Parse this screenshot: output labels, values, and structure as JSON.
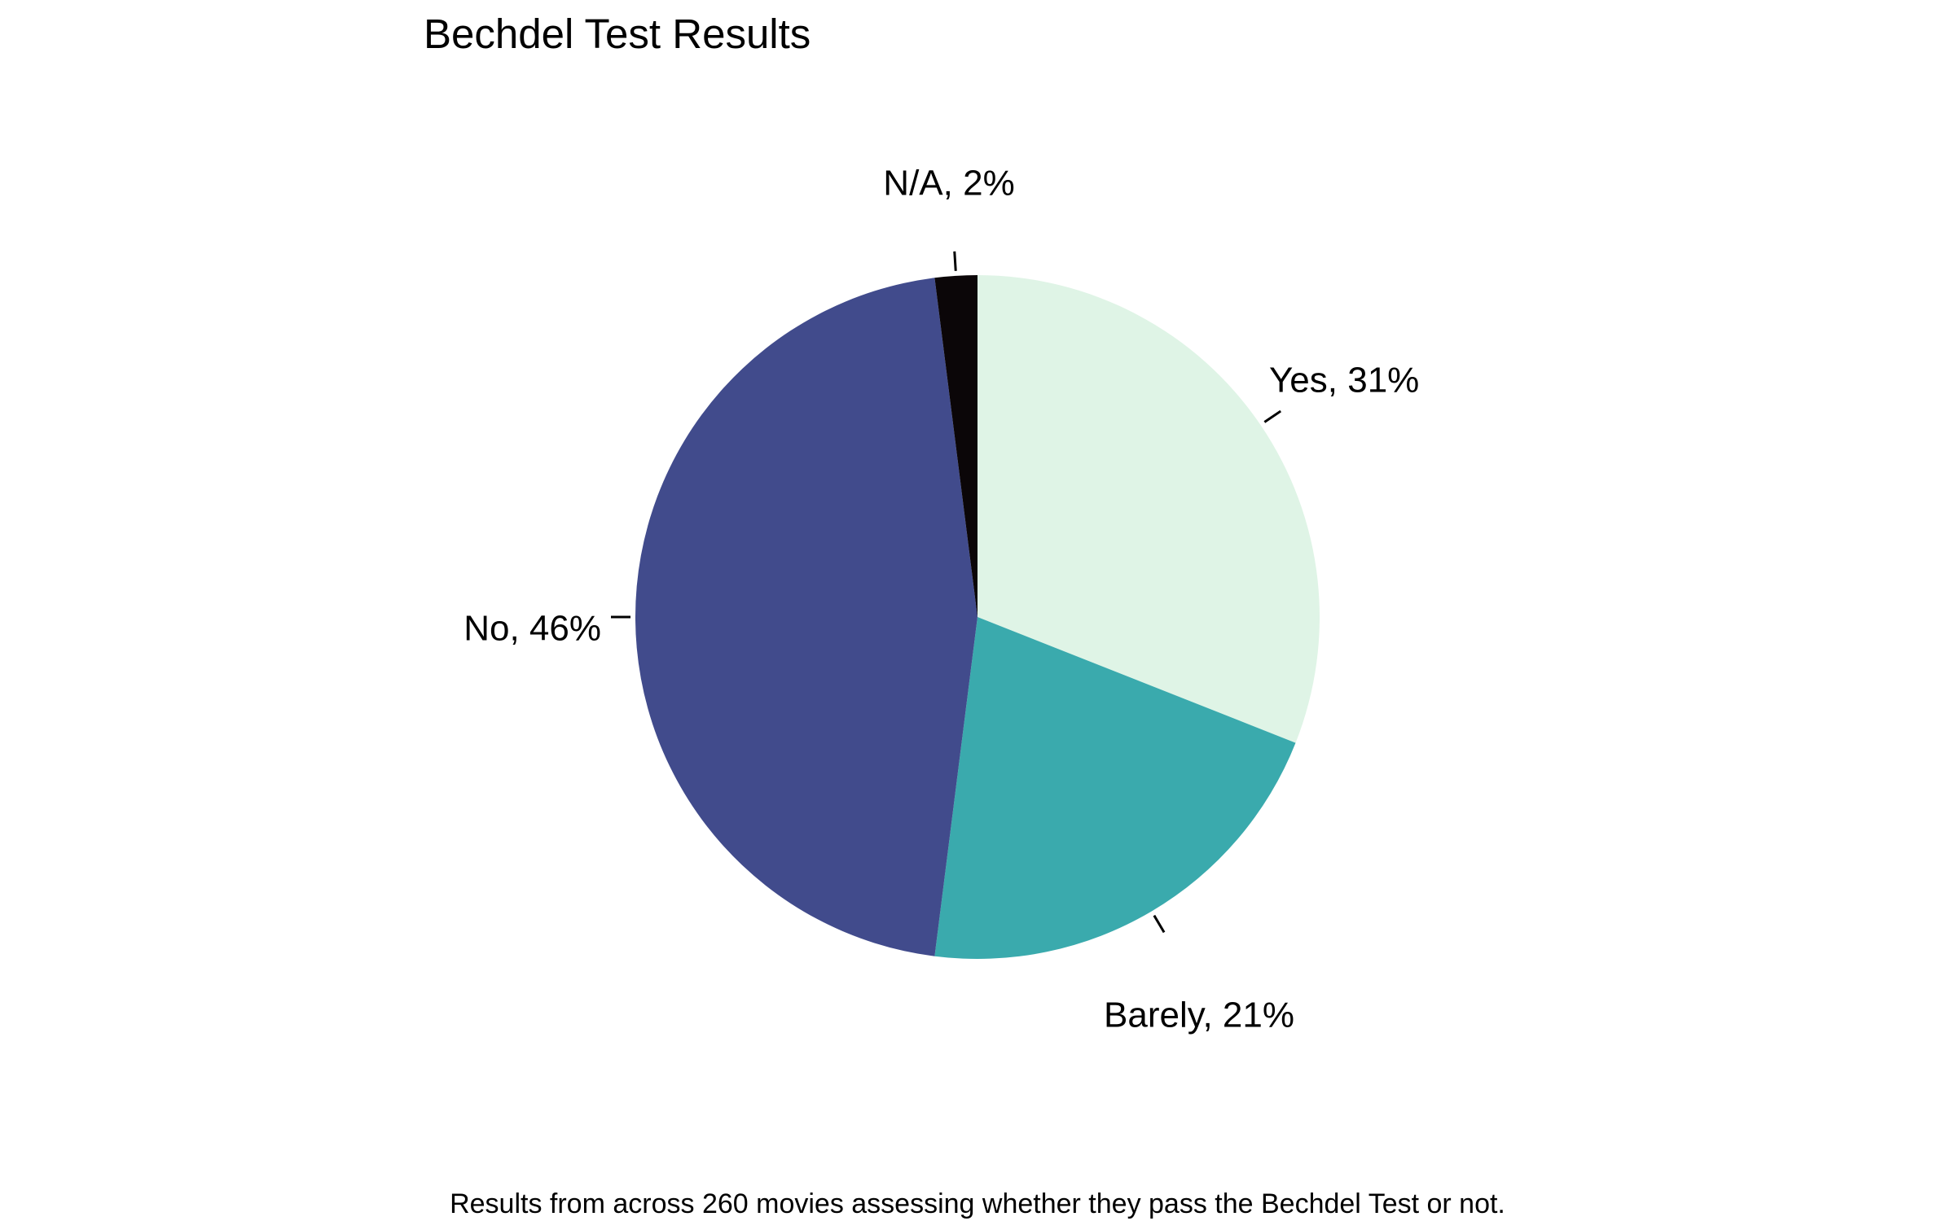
{
  "chart_data": {
    "type": "pie",
    "title": "Bechdel Test Results",
    "caption": "Results from across 260 movies assessing whether they pass the Bechdel Test or not.",
    "start_angle": "12 o'clock",
    "direction": "clockwise",
    "slices": [
      {
        "name": "Yes",
        "value": 31,
        "label": "Yes, 31%",
        "color": "#dff4e6"
      },
      {
        "name": "Barely",
        "value": 21,
        "label": "Barely, 21%",
        "color": "#3aaaad"
      },
      {
        "name": "No",
        "value": 46,
        "label": "No, 46%",
        "color": "#414b8c"
      },
      {
        "name": "N/A",
        "value": 2,
        "label": "N/A, 2%",
        "color": "#0b0608"
      }
    ]
  }
}
